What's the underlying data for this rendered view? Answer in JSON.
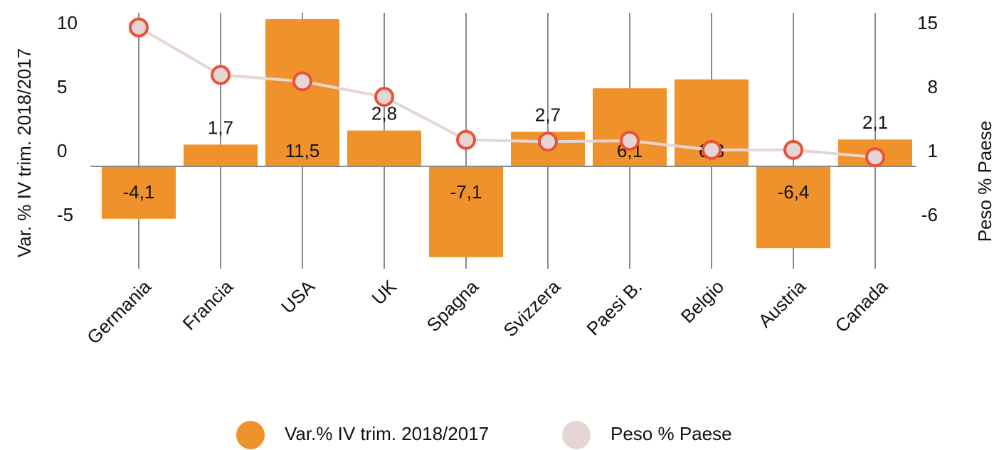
{
  "chart_data": {
    "type": "bar_line",
    "categories": [
      "Germania",
      "Francia",
      "USA",
      "UK",
      "Spagna",
      "Svizzera",
      "Paesi B.",
      "Belgio",
      "Austria",
      "Canada"
    ],
    "series": [
      {
        "name": "Var.% IV trim. 2018/2017",
        "type": "bar",
        "color": "#f0922b",
        "values": [
          -4.1,
          1.7,
          11.5,
          2.8,
          -7.1,
          2.7,
          6.1,
          6.8,
          -6.4,
          2.1
        ],
        "value_labels": [
          "-4,1",
          "1,7",
          "11,5",
          "2,8",
          "-7,1",
          "2,7",
          "6,1",
          "6,8",
          "-6,4",
          "2,1"
        ]
      },
      {
        "name": "Peso % Paese",
        "type": "line",
        "axis": "y2",
        "color": "#e6d5d5",
        "marker_edge": "#e8523a",
        "values": [
          16.2,
          11.0,
          10.3,
          8.6,
          3.9,
          3.7,
          3.8,
          2.8,
          2.8,
          2.0
        ]
      }
    ],
    "y_label": "Var. % IV trim. 2018/2017",
    "y2_label": "Peso % Paese",
    "ylim": [
      -8,
      12
    ],
    "yticks": [
      -5,
      0,
      5,
      10
    ],
    "y2lim": [
      -10.2,
      17.8
    ],
    "y2ticks": [
      -6,
      1,
      8,
      15
    ],
    "grid": "vertical",
    "legend": "bottom"
  }
}
